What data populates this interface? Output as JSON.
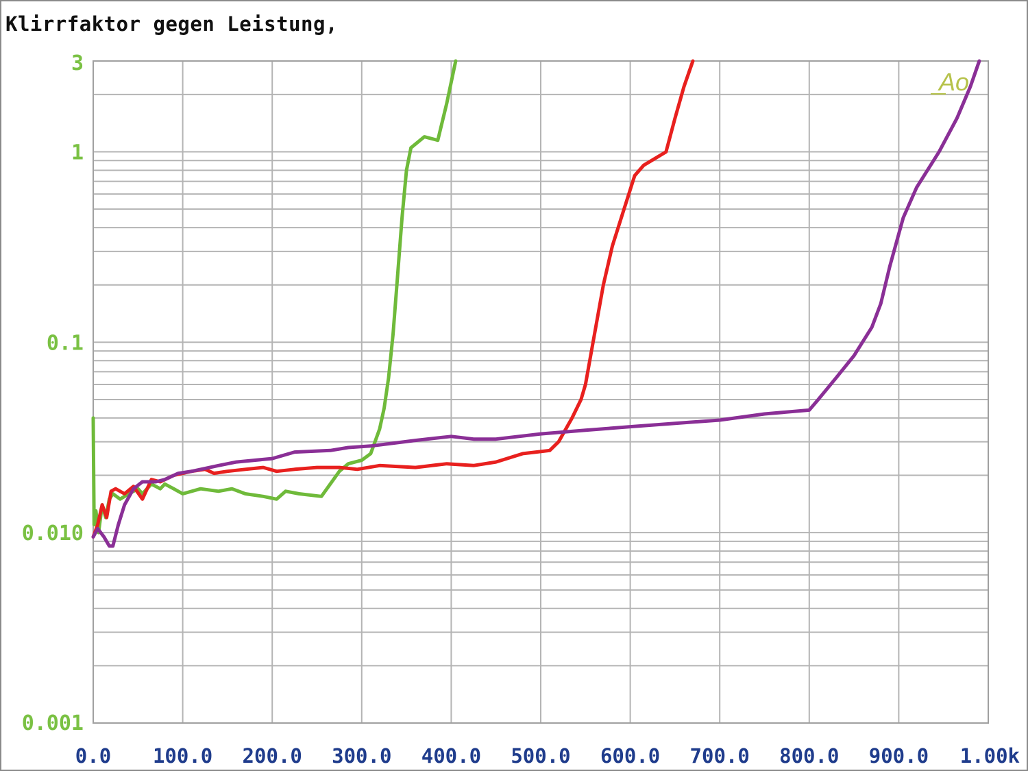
{
  "title": "Klirrfaktor gegen Leistung,",
  "colors": {
    "y_tick_text": "#7ac143",
    "x_tick_text": "#1f3c8c",
    "grid": "#b4b4b4",
    "series_green": "#6fba3a",
    "series_red": "#e8201e",
    "series_purple": "#8a2f96",
    "annotation": "#b6c24a"
  },
  "chart_data": {
    "type": "line",
    "title": "Klirrfaktor gegen Leistung,",
    "xlabel": "",
    "ylabel": "",
    "xlim": [
      0,
      1000
    ],
    "ylim": [
      0.001,
      3
    ],
    "y_scale": "log",
    "grid": true,
    "x_tick_labels": [
      "0.0",
      "100.0",
      "200.0",
      "300.0",
      "400.0",
      "500.0",
      "600.0",
      "700.0",
      "800.0",
      "900.0",
      "1.00k"
    ],
    "x_tick_values": [
      0,
      100,
      200,
      300,
      400,
      500,
      600,
      700,
      800,
      900,
      1000
    ],
    "y_tick_labels": [
      "3",
      "1",
      "0.1",
      "0.010",
      "0.001"
    ],
    "y_tick_values": [
      3,
      1,
      0.1,
      0.01,
      0.001
    ],
    "annotation": "Ao",
    "series": [
      {
        "color": "#6fba3a",
        "points": [
          [
            0,
            0.04
          ],
          [
            1,
            0.011
          ],
          [
            3,
            0.013
          ],
          [
            6,
            0.01
          ],
          [
            10,
            0.014
          ],
          [
            14,
            0.012
          ],
          [
            18,
            0.015
          ],
          [
            22,
            0.016
          ],
          [
            30,
            0.015
          ],
          [
            40,
            0.016
          ],
          [
            50,
            0.017
          ],
          [
            55,
            0.016
          ],
          [
            65,
            0.018
          ],
          [
            75,
            0.017
          ],
          [
            80,
            0.018
          ],
          [
            90,
            0.017
          ],
          [
            100,
            0.016
          ],
          [
            120,
            0.017
          ],
          [
            140,
            0.0165
          ],
          [
            155,
            0.017
          ],
          [
            170,
            0.016
          ],
          [
            190,
            0.0155
          ],
          [
            205,
            0.015
          ],
          [
            215,
            0.0165
          ],
          [
            230,
            0.016
          ],
          [
            255,
            0.0155
          ],
          [
            275,
            0.021
          ],
          [
            285,
            0.023
          ],
          [
            300,
            0.024
          ],
          [
            310,
            0.026
          ],
          [
            320,
            0.035
          ],
          [
            325,
            0.045
          ],
          [
            330,
            0.065
          ],
          [
            335,
            0.11
          ],
          [
            340,
            0.22
          ],
          [
            345,
            0.45
          ],
          [
            350,
            0.8
          ],
          [
            355,
            1.05
          ],
          [
            370,
            1.2
          ],
          [
            385,
            1.15
          ],
          [
            395,
            1.8
          ],
          [
            405,
            3
          ]
        ]
      },
      {
        "color": "#e8201e",
        "points": [
          [
            0,
            0.0095
          ],
          [
            5,
            0.011
          ],
          [
            10,
            0.014
          ],
          [
            15,
            0.012
          ],
          [
            20,
            0.0165
          ],
          [
            25,
            0.017
          ],
          [
            35,
            0.016
          ],
          [
            45,
            0.0175
          ],
          [
            55,
            0.015
          ],
          [
            65,
            0.019
          ],
          [
            75,
            0.0185
          ],
          [
            90,
            0.02
          ],
          [
            110,
            0.021
          ],
          [
            125,
            0.0215
          ],
          [
            135,
            0.0205
          ],
          [
            150,
            0.021
          ],
          [
            170,
            0.0215
          ],
          [
            190,
            0.022
          ],
          [
            205,
            0.021
          ],
          [
            225,
            0.0215
          ],
          [
            250,
            0.022
          ],
          [
            275,
            0.022
          ],
          [
            295,
            0.0215
          ],
          [
            320,
            0.0225
          ],
          [
            360,
            0.022
          ],
          [
            395,
            0.023
          ],
          [
            425,
            0.0225
          ],
          [
            450,
            0.0235
          ],
          [
            480,
            0.026
          ],
          [
            495,
            0.0265
          ],
          [
            510,
            0.027
          ],
          [
            520,
            0.03
          ],
          [
            535,
            0.04
          ],
          [
            545,
            0.05
          ],
          [
            550,
            0.06
          ],
          [
            560,
            0.11
          ],
          [
            570,
            0.2
          ],
          [
            580,
            0.32
          ],
          [
            590,
            0.45
          ],
          [
            605,
            0.75
          ],
          [
            615,
            0.85
          ],
          [
            640,
            1.0
          ],
          [
            650,
            1.5
          ],
          [
            660,
            2.2
          ],
          [
            670,
            3
          ]
        ]
      },
      {
        "color": "#8a2f96",
        "points": [
          [
            0,
            0.0095
          ],
          [
            5,
            0.0105
          ],
          [
            12,
            0.0095
          ],
          [
            18,
            0.0085
          ],
          [
            22,
            0.0085
          ],
          [
            28,
            0.011
          ],
          [
            35,
            0.014
          ],
          [
            45,
            0.017
          ],
          [
            55,
            0.0185
          ],
          [
            70,
            0.0185
          ],
          [
            80,
            0.019
          ],
          [
            95,
            0.0205
          ],
          [
            110,
            0.021
          ],
          [
            140,
            0.0225
          ],
          [
            160,
            0.0235
          ],
          [
            180,
            0.024
          ],
          [
            200,
            0.0245
          ],
          [
            225,
            0.0265
          ],
          [
            265,
            0.027
          ],
          [
            285,
            0.028
          ],
          [
            310,
            0.0285
          ],
          [
            360,
            0.0305
          ],
          [
            400,
            0.032
          ],
          [
            425,
            0.031
          ],
          [
            450,
            0.031
          ],
          [
            500,
            0.033
          ],
          [
            550,
            0.0345
          ],
          [
            600,
            0.036
          ],
          [
            650,
            0.0375
          ],
          [
            700,
            0.039
          ],
          [
            750,
            0.042
          ],
          [
            800,
            0.044
          ],
          [
            810,
            0.05
          ],
          [
            830,
            0.065
          ],
          [
            850,
            0.085
          ],
          [
            870,
            0.12
          ],
          [
            880,
            0.16
          ],
          [
            890,
            0.25
          ],
          [
            905,
            0.45
          ],
          [
            920,
            0.65
          ],
          [
            945,
            1.0
          ],
          [
            965,
            1.5
          ],
          [
            980,
            2.2
          ],
          [
            990,
            3
          ]
        ]
      }
    ]
  }
}
